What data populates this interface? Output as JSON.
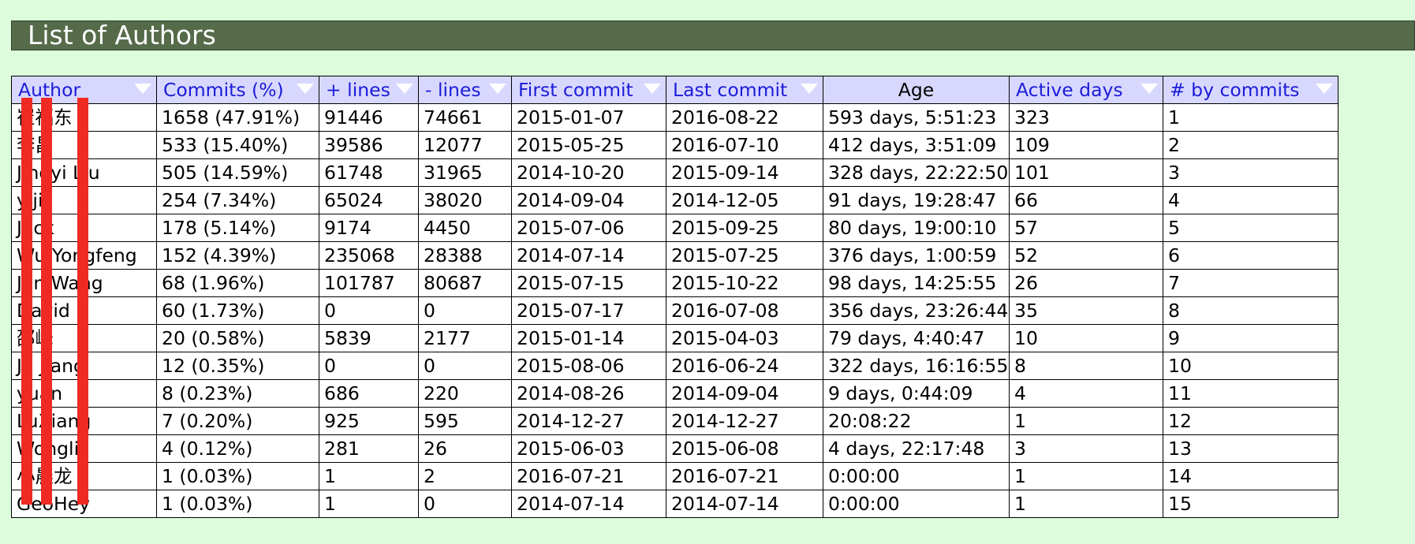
{
  "page": {
    "title": "List of Authors"
  },
  "table": {
    "columns": [
      {
        "label": "Author",
        "sortable": true
      },
      {
        "label": "Commits (%)",
        "sortable": true
      },
      {
        "label": "+ lines",
        "sortable": true
      },
      {
        "label": "- lines",
        "sortable": true
      },
      {
        "label": "First commit",
        "sortable": true
      },
      {
        "label": "Last commit",
        "sortable": true
      },
      {
        "label": "Age",
        "sortable": false
      },
      {
        "label": "Active days",
        "sortable": true
      },
      {
        "label": "# by commits",
        "sortable": true
      }
    ],
    "rows": [
      [
        "崔福东",
        "1658 (47.91%)",
        "91446",
        "74661",
        "2015-01-07",
        "2016-08-22",
        "593 days, 5:51:23",
        "323",
        "1"
      ],
      [
        "李昌",
        "533 (15.40%)",
        "39586",
        "12077",
        "2015-05-25",
        "2016-07-10",
        "412 days, 3:51:09",
        "109",
        "2"
      ],
      [
        "Jingyi Liu",
        "505 (14.59%)",
        "61748",
        "31965",
        "2014-10-20",
        "2015-09-14",
        "328 days, 22:22:50",
        "101",
        "3"
      ],
      [
        "yiji",
        "254 (7.34%)",
        "65024",
        "38020",
        "2014-09-04",
        "2014-12-05",
        "91 days, 19:28:47",
        "66",
        "4"
      ],
      [
        "Jack",
        "178 (5.14%)",
        "9174",
        "4450",
        "2015-07-06",
        "2015-09-25",
        "80 days, 19:00:10",
        "57",
        "5"
      ],
      [
        "Wu Yongfeng",
        "152 (4.39%)",
        "235068",
        "28388",
        "2014-07-14",
        "2015-07-25",
        "376 days, 1:00:59",
        "52",
        "6"
      ],
      [
        "Jan Wang",
        "68 (1.96%)",
        "101787",
        "80687",
        "2015-07-15",
        "2015-10-22",
        "98 days, 14:25:55",
        "26",
        "7"
      ],
      [
        "David",
        "60 (1.73%)",
        "0",
        "0",
        "2015-07-17",
        "2016-07-08",
        "356 days, 23:26:44",
        "35",
        "8"
      ],
      [
        "邵峰",
        "20 (0.58%)",
        "5839",
        "2177",
        "2015-01-14",
        "2015-04-03",
        "79 days, 4:40:47",
        "10",
        "9"
      ],
      [
        "Ju Jiang",
        "12 (0.35%)",
        "0",
        "0",
        "2015-08-06",
        "2016-06-24",
        "322 days, 16:16:55",
        "8",
        "10"
      ],
      [
        "yuan",
        "8 (0.23%)",
        "686",
        "220",
        "2014-08-26",
        "2014-09-04",
        "9 days, 0:44:09",
        "4",
        "11"
      ],
      [
        "LuXiang",
        "7 (0.20%)",
        "925",
        "595",
        "2014-12-27",
        "2014-12-27",
        "20:08:22",
        "1",
        "12"
      ],
      [
        "Wongli",
        "4 (0.12%)",
        "281",
        "26",
        "2015-06-03",
        "2015-06-08",
        "4 days, 22:17:48",
        "3",
        "13"
      ],
      [
        "小晨龙",
        "1 (0.03%)",
        "1",
        "2",
        "2016-07-21",
        "2016-07-21",
        "0:00:00",
        "1",
        "14"
      ],
      [
        "GeoHey",
        "1 (0.03%)",
        "1",
        "0",
        "2014-07-14",
        "2014-07-14",
        "0:00:00",
        "1",
        "15"
      ]
    ]
  },
  "colors": {
    "page_background": "#dcfcdc",
    "header_bar": "#556b4a",
    "table_header": "#d8d8ff",
    "header_link_text": "#1c1cd8",
    "redaction": "#ee2b22"
  }
}
